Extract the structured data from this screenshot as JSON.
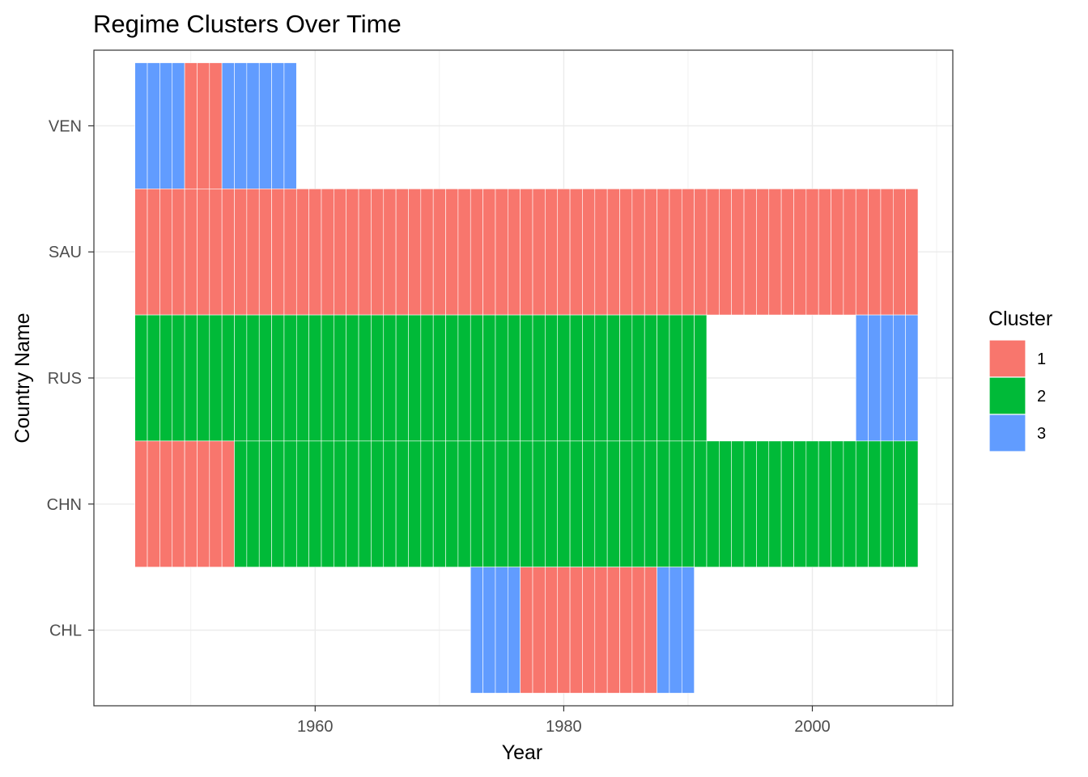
{
  "chart_data": {
    "type": "heatmap",
    "title": "Regime Clusters Over Time",
    "xlabel": "Year",
    "ylabel": "Country Name",
    "xlim": [
      1942.2,
      2011.3
    ],
    "x_ticks": [
      1960,
      1980,
      2000
    ],
    "x_gridlines": [
      1950,
      1960,
      1970,
      1980,
      1990,
      2000,
      2010
    ],
    "categories": [
      "CHL",
      "CHN",
      "RUS",
      "SAU",
      "VEN"
    ],
    "grid": true,
    "legend": {
      "title": "Cluster",
      "position": "right",
      "entries": [
        {
          "label": "1",
          "color": "#F8766D"
        },
        {
          "label": "2",
          "color": "#00BA38"
        },
        {
          "label": "3",
          "color": "#619CFF"
        }
      ]
    },
    "series": [
      {
        "country": "VEN",
        "segments": [
          {
            "start": 1946,
            "end": 1949,
            "cluster": 3
          },
          {
            "start": 1950,
            "end": 1952,
            "cluster": 1
          },
          {
            "start": 1953,
            "end": 1958,
            "cluster": 3
          }
        ]
      },
      {
        "country": "SAU",
        "segments": [
          {
            "start": 1946,
            "end": 2008,
            "cluster": 1
          }
        ]
      },
      {
        "country": "RUS",
        "segments": [
          {
            "start": 1946,
            "end": 1991,
            "cluster": 2
          },
          {
            "start": 2004,
            "end": 2008,
            "cluster": 3
          }
        ]
      },
      {
        "country": "CHN",
        "segments": [
          {
            "start": 1946,
            "end": 1953,
            "cluster": 1
          },
          {
            "start": 1954,
            "end": 2008,
            "cluster": 2
          }
        ]
      },
      {
        "country": "CHL",
        "segments": [
          {
            "start": 1973,
            "end": 1976,
            "cluster": 3
          },
          {
            "start": 1977,
            "end": 1987,
            "cluster": 1
          },
          {
            "start": 1988,
            "end": 1990,
            "cluster": 3
          }
        ]
      }
    ]
  }
}
